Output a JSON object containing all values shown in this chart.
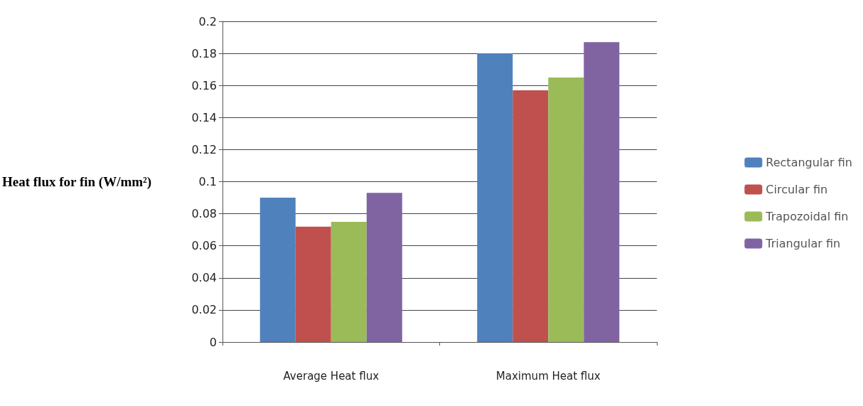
{
  "chart_data": {
    "type": "bar",
    "ylabel": "Heat flux for fin (W/mm²)",
    "categories": [
      "Average Heat flux",
      "Maximum Heat flux"
    ],
    "series": [
      {
        "name": "Rectangular fin",
        "color": "#4f81bd",
        "values": [
          0.09,
          0.18
        ]
      },
      {
        "name": "Circular fin",
        "color": "#c0504d",
        "values": [
          0.072,
          0.157
        ]
      },
      {
        "name": "Trapozoidal fin",
        "color": "#9bbb59",
        "values": [
          0.075,
          0.165
        ]
      },
      {
        "name": "Triangular fin",
        "color": "#8064a2",
        "values": [
          0.093,
          0.187
        ]
      }
    ],
    "ylim": [
      0,
      0.2
    ],
    "yticks": [
      0,
      0.02,
      0.04,
      0.06,
      0.08,
      0.1,
      0.12,
      0.14,
      0.16,
      0.18,
      0.2
    ],
    "grid": "y",
    "legend": "right"
  }
}
